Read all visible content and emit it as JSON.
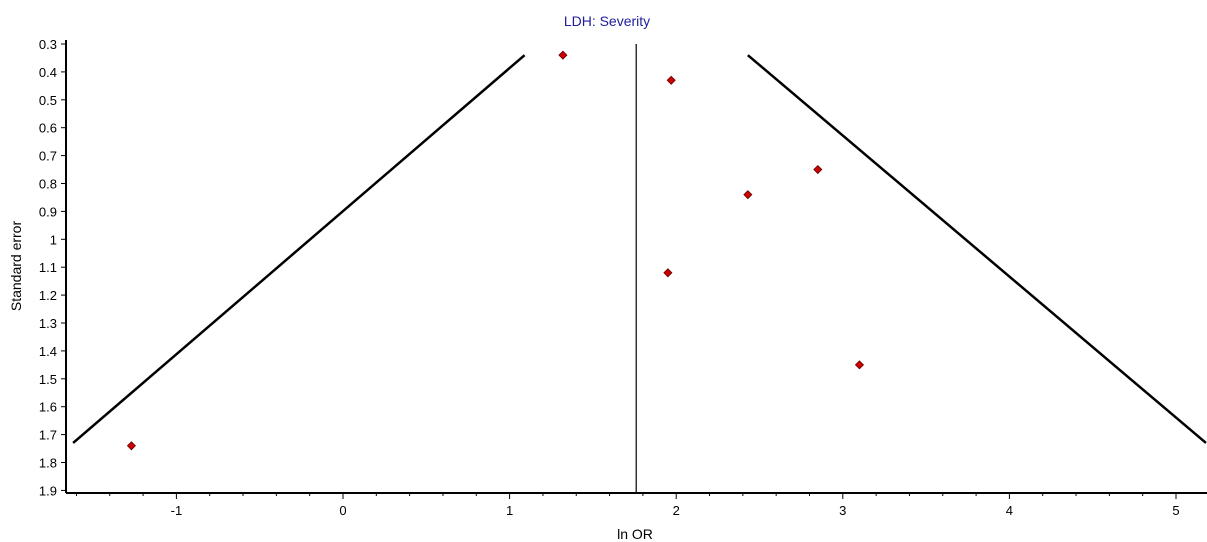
{
  "chart_data": {
    "type": "scatter",
    "title": "LDH: Severity",
    "xlabel": "ln OR",
    "ylabel": "Standard error",
    "xlim": [
      -1.65,
      5.2
    ],
    "ylim": [
      0.3,
      1.9
    ],
    "y_inverted": true,
    "x_ticks": [
      -1,
      0,
      1,
      2,
      3,
      4,
      5
    ],
    "y_ticks": [
      0.3,
      0.4,
      0.5,
      0.6,
      0.7,
      0.8,
      0.9,
      1,
      1.1,
      1.2,
      1.3,
      1.4,
      1.5,
      1.6,
      1.7,
      1.8,
      1.9
    ],
    "y_tick_labels": [
      "0.3",
      "0.4",
      "0.5",
      "0.6",
      "0.7",
      "0.8",
      "0.9",
      "1",
      "1.1",
      "1.2",
      "1.3",
      "1.4",
      "1.5",
      "1.6",
      "1.7",
      "1.8",
      "1.9"
    ],
    "pooled_estimate": 1.76,
    "funnel_lines": [
      {
        "points": [
          [
            -1.62,
            1.73
          ],
          [
            1.09,
            0.34
          ]
        ]
      },
      {
        "points": [
          [
            2.43,
            0.34
          ],
          [
            5.18,
            1.73
          ]
        ]
      }
    ],
    "points": [
      {
        "x": 1.32,
        "y": 0.34
      },
      {
        "x": 1.97,
        "y": 0.43
      },
      {
        "x": 2.85,
        "y": 0.75
      },
      {
        "x": 2.43,
        "y": 0.84
      },
      {
        "x": 1.95,
        "y": 1.12
      },
      {
        "x": 3.1,
        "y": 1.45
      },
      {
        "x": -1.27,
        "y": 1.74
      }
    ],
    "grid": false,
    "colors": {
      "title": "#1e1e9c",
      "point_fill": "#cc0000",
      "point_stroke": "#660000",
      "lines": "#000000"
    }
  }
}
